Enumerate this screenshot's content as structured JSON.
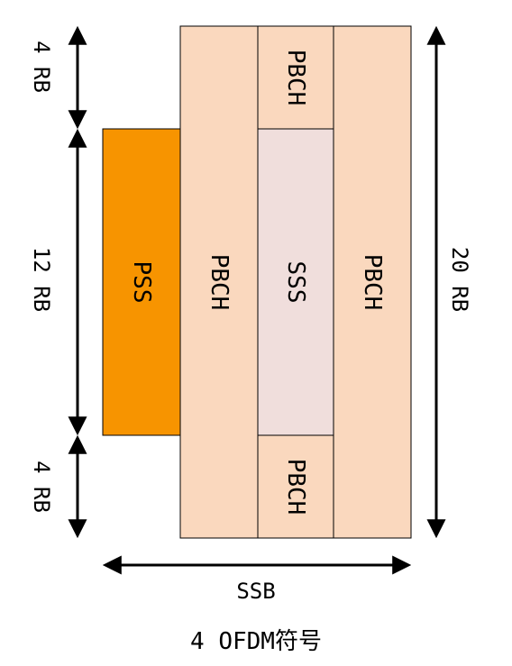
{
  "diagram": {
    "blocks": {
      "pss": {
        "label": "PSS",
        "color": "#F79400"
      },
      "pbch_left": {
        "label": "PBCH",
        "color": "#FAD8BE"
      },
      "pbch_top": {
        "label": "PBCH",
        "color": "#FAD8BE"
      },
      "sss": {
        "label": "SSS",
        "color": "#F0DEDC"
      },
      "pbch_bottom": {
        "label": "PBCH",
        "color": "#FAD8BE"
      },
      "pbch_right": {
        "label": "PBCH",
        "color": "#FAD8BE"
      }
    },
    "dimensions": {
      "top_rb": "4 RB",
      "middle_rb": "12 RB",
      "bottom_rb": "4 RB",
      "total_rb": "20 RB"
    },
    "time_axis": {
      "label": "SSB",
      "sublabel": "4 OFDM符号"
    }
  }
}
